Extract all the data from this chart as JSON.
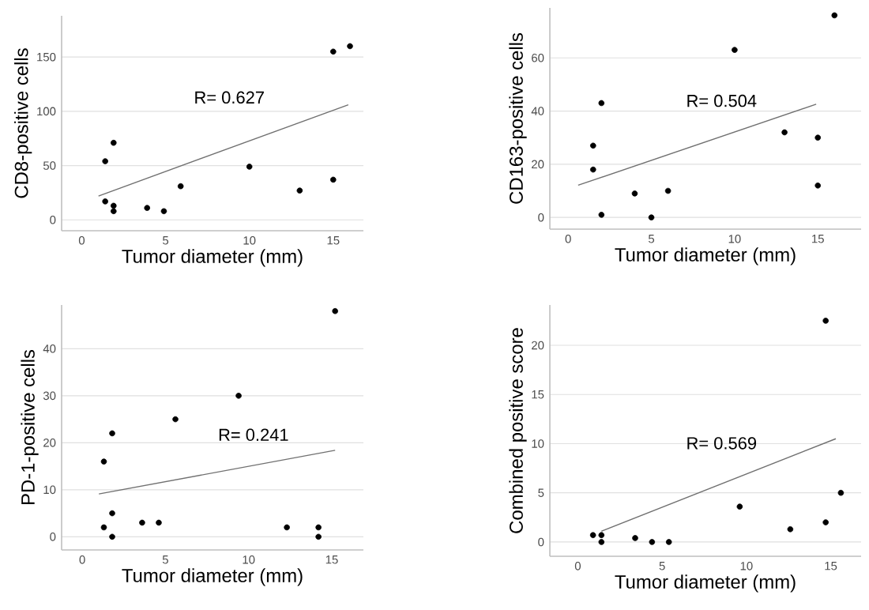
{
  "chart_data": [
    {
      "type": "scatter",
      "xlabel": "Tumor diameter (mm)",
      "ylabel": "CD8-positive cells",
      "annotations": [
        "R= 0.627"
      ],
      "xlim": [
        -1.2,
        16.8
      ],
      "ylim": [
        -10,
        188
      ],
      "xticks": [
        0,
        5,
        10,
        15
      ],
      "yticks": [
        0,
        50,
        100,
        150
      ],
      "grid": "y",
      "series": [
        {
          "type": "scatter",
          "marker": "circle",
          "color": "#000000",
          "x": [
            1.4,
            1.4,
            1.9,
            1.9,
            1.9,
            3.9,
            4.9,
            5.9,
            10,
            13,
            15,
            15,
            16
          ],
          "values": [
            17,
            54,
            71,
            13,
            8,
            11,
            8,
            31,
            49,
            27,
            37,
            155,
            160
          ]
        },
        {
          "type": "line",
          "color": "#707070",
          "marker": "none",
          "x": [
            1.0,
            15.9
          ],
          "values": [
            22,
            106
          ]
        }
      ]
    },
    {
      "type": "scatter",
      "xlabel": "Tumor diameter (mm)",
      "ylabel": "CD163-positive cells",
      "annotations": [
        "R= 0.504"
      ],
      "xlim": [
        -1.1,
        17.6
      ],
      "ylim": [
        -4.4,
        78.8
      ],
      "xticks": [
        0,
        5,
        10,
        15
      ],
      "yticks": [
        0,
        20,
        40,
        60
      ],
      "grid": "y",
      "series": [
        {
          "type": "scatter",
          "marker": "circle",
          "color": "#000000",
          "x": [
            1.5,
            1.5,
            2,
            2,
            4,
            5,
            6,
            10,
            13,
            15,
            15,
            16
          ],
          "values": [
            27,
            18,
            43,
            1,
            9,
            0,
            10,
            63,
            32,
            30,
            12,
            76
          ]
        },
        {
          "type": "line",
          "color": "#707070",
          "marker": "none",
          "x": [
            0.6,
            14.9
          ],
          "values": [
            12.1,
            42.6
          ]
        }
      ]
    },
    {
      "type": "scatter",
      "xlabel": "Tumor diameter (mm)",
      "ylabel": "PD-1-positive cells",
      "annotations": [
        "R= 0.241"
      ],
      "xlim": [
        -1.24,
        16.9
      ],
      "ylim": [
        -2.8,
        49.3
      ],
      "xticks": [
        0,
        5,
        10,
        15
      ],
      "yticks": [
        0,
        10,
        20,
        30,
        40
      ],
      "grid": "y",
      "series": [
        {
          "type": "scatter",
          "marker": "circle",
          "color": "#000000",
          "x": [
            1.3,
            1.3,
            1.8,
            1.8,
            1.8,
            3.6,
            4.6,
            5.6,
            9.4,
            12.3,
            14.2,
            14.2,
            15.2
          ],
          "values": [
            16,
            2,
            22,
            5,
            0,
            3,
            3,
            25,
            30,
            2,
            2,
            0,
            48
          ]
        },
        {
          "type": "line",
          "color": "#707070",
          "marker": "none",
          "x": [
            1.0,
            15.2
          ],
          "values": [
            9.1,
            18.4
          ]
        }
      ]
    },
    {
      "type": "scatter",
      "xlabel": "Tumor diameter (mm)",
      "ylabel": "Combined positive score",
      "annotations": [
        "R= 0.569"
      ],
      "xlim": [
        -1.66,
        16.8
      ],
      "ylim": [
        -1.45,
        24.1
      ],
      "xticks": [
        0,
        5,
        10,
        15
      ],
      "yticks": [
        0,
        5,
        10,
        15,
        20
      ],
      "grid": "y",
      "series": [
        {
          "type": "scatter",
          "marker": "circle",
          "color": "#000000",
          "x": [
            0.9,
            1.4,
            1.4,
            3.4,
            4.4,
            5.4,
            9.6,
            12.6,
            14.7,
            14.7,
            15.6
          ],
          "values": [
            0.7,
            0.7,
            0,
            0.4,
            0,
            0,
            3.6,
            1.3,
            2,
            22.5,
            5
          ]
        },
        {
          "type": "line",
          "color": "#707070",
          "marker": "none",
          "x": [
            1.4,
            15.3
          ],
          "values": [
            1.1,
            10.5
          ]
        }
      ]
    }
  ]
}
